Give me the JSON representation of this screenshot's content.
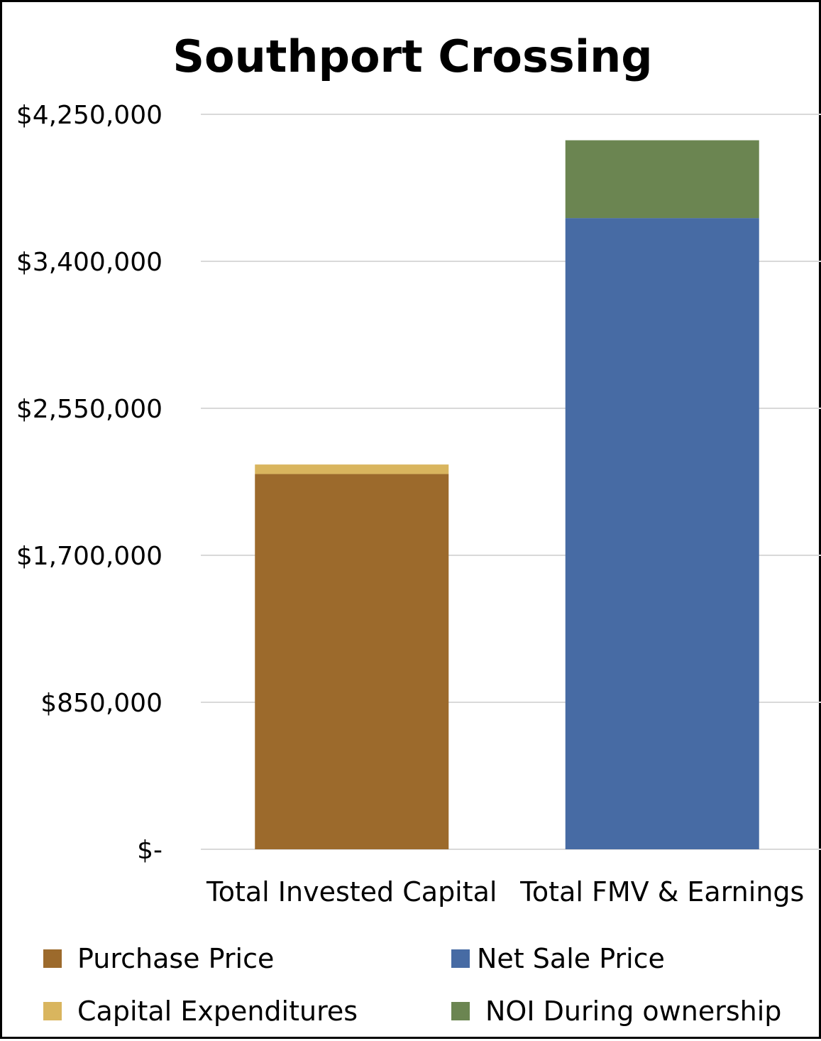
{
  "chart_data": {
    "type": "bar",
    "stacked": true,
    "title": "Southport Crossing",
    "xlabel": "",
    "ylabel": "",
    "ylim": [
      0,
      4250000
    ],
    "y_ticks": [
      0,
      850000,
      1700000,
      2550000,
      3400000,
      4250000
    ],
    "y_tick_labels": [
      "$-",
      "$850,000",
      "$1,700,000",
      "$2,550,000",
      "$3,400,000",
      "$4,250,000"
    ],
    "grid": true,
    "legend_position": "bottom",
    "categories": [
      "Total Invested Capital",
      "Total FMV & Earnings"
    ],
    "series": [
      {
        "name": "Purchase Price",
        "color": "#9C6A2C",
        "values": [
          2170000,
          0
        ]
      },
      {
        "name": "Capital Expenditures",
        "color": "#D9B55E",
        "values": [
          55000,
          0
        ]
      },
      {
        "name": "Net Sale Price",
        "color": "#476BA4",
        "values": [
          0,
          3650000
        ]
      },
      {
        "name": "NOI During ownership",
        "color": "#6B8551",
        "values": [
          0,
          450000
        ]
      }
    ]
  },
  "legend": {
    "items": [
      "Purchase Price",
      "Net Sale Price",
      "Capital Expenditures",
      "NOI During ownership"
    ]
  }
}
